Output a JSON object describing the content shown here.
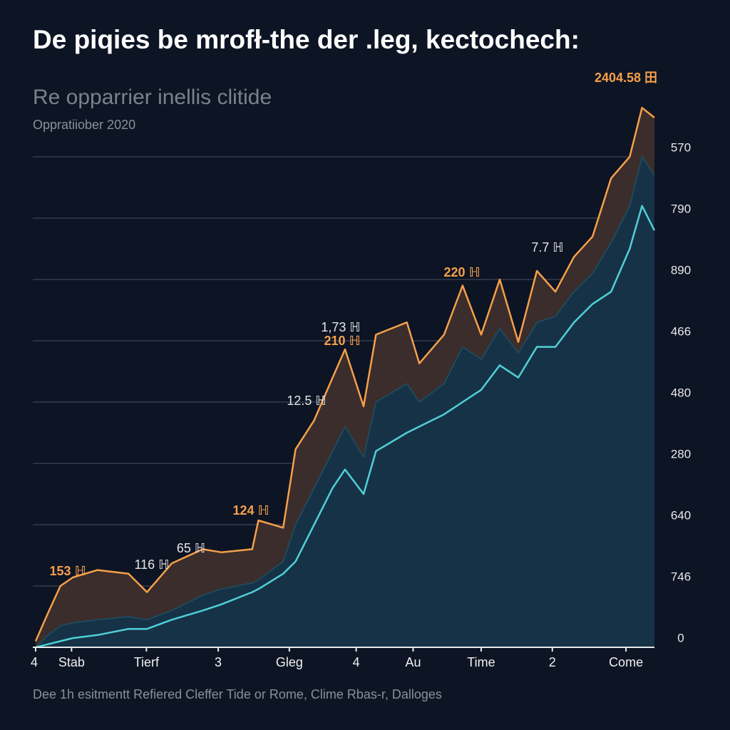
{
  "chart_data": {
    "type": "area",
    "title": "De piqies be mrofł-the der .leg, kectochech:",
    "subtitle": "Re opparrier inellis clitide",
    "date_label": "Oppratiiober 2020",
    "footer": "Dee 1h esitmentt Refiered Cleffer  Tide or Rome, Clime Rbas-r, Dalloges",
    "x": [
      0,
      2,
      4,
      6,
      10,
      15,
      18,
      22,
      27,
      30,
      35,
      36,
      40,
      42,
      45,
      48,
      50,
      53,
      55,
      60,
      62,
      66,
      69,
      72,
      75,
      78,
      81,
      84,
      87,
      90,
      93,
      96,
      98,
      100
    ],
    "series": [
      {
        "color": "#f5a04a",
        "fill": "#3b2d2b",
        "values": [
          0.1,
          0.56,
          1.0,
          1.14,
          1.26,
          1.2,
          0.9,
          1.37,
          1.6,
          1.55,
          1.6,
          2.07,
          1.95,
          3.23,
          3.7,
          4.4,
          4.86,
          3.93,
          5.1,
          5.3,
          4.63,
          5.1,
          5.9,
          5.1,
          6.0,
          4.98,
          6.14,
          5.8,
          6.37,
          6.7,
          7.65,
          8.0,
          8.8,
          8.64
        ]
      },
      {
        "color": "#1f4a5c",
        "fill": "#163247",
        "values": [
          0,
          0.2,
          0.35,
          0.4,
          0.45,
          0.5,
          0.45,
          0.6,
          0.85,
          0.95,
          1.05,
          1.1,
          1.4,
          2.0,
          2.6,
          3.2,
          3.6,
          3.1,
          4.0,
          4.3,
          4.0,
          4.3,
          4.9,
          4.7,
          5.2,
          4.8,
          5.3,
          5.4,
          5.8,
          6.1,
          6.6,
          7.2,
          8.0,
          7.7
        ]
      },
      {
        "color": "#4fd0d6",
        "values": [
          0,
          0.05,
          0.1,
          0.15,
          0.2,
          0.3,
          0.3,
          0.45,
          0.6,
          0.7,
          0.9,
          0.95,
          1.2,
          1.4,
          2.0,
          2.6,
          2.9,
          2.5,
          3.2,
          3.5,
          3.6,
          3.8,
          4.0,
          4.2,
          4.6,
          4.4,
          4.9,
          4.9,
          5.3,
          5.6,
          5.8,
          6.5,
          7.2,
          6.8
        ]
      }
    ],
    "xlim": [
      0,
      100
    ],
    "xticks": [
      {
        "value": 0,
        "label": "4"
      },
      {
        "value": 5.8,
        "label": "Stab"
      },
      {
        "value": 17.9,
        "label": "Tierf"
      },
      {
        "value": 29.5,
        "label": "3"
      },
      {
        "value": 41,
        "label": "Gleg"
      },
      {
        "value": 51.8,
        "label": "4"
      },
      {
        "value": 61,
        "label": "Au"
      },
      {
        "value": 72,
        "label": "Time"
      },
      {
        "value": 83.5,
        "label": "2"
      },
      {
        "value": 95.4,
        "label": "Come"
      }
    ],
    "ylim": [
      0,
      9
    ],
    "yticks": [
      {
        "value": 8,
        "label": "570"
      },
      {
        "value": 7,
        "label": "790"
      },
      {
        "value": 6,
        "label": "890"
      },
      {
        "value": 5,
        "label": "466"
      },
      {
        "value": 4,
        "label": "480"
      },
      {
        "value": 3,
        "label": "280"
      },
      {
        "value": 2,
        "label": "640"
      },
      {
        "value": 1,
        "label": "746"
      },
      0
    ],
    "grid": true,
    "annotations": [
      {
        "text": "2404.58 田",
        "color": "#f5a04a"
      },
      {
        "text": "7.7 ℍ",
        "color": "#e6e6e6"
      },
      {
        "text": "220 ℍ",
        "color": "#f5a04a"
      },
      {
        "text": "1,73 ℍ",
        "color": "#e6e6e6"
      },
      {
        "text": "210 ℍ",
        "color": "#f5a04a"
      },
      {
        "text": "12.5 ℍ",
        "color": "#e6e6e6"
      },
      {
        "text": "124 ℍ",
        "color": "#f5a04a"
      },
      {
        "text": "65 ℍ",
        "color": "#e6e6e6"
      },
      {
        "text": "116 ℍ",
        "color": "#e6e6e6"
      },
      {
        "text": "153 ℍ",
        "color": "#f5a04a"
      }
    ]
  }
}
